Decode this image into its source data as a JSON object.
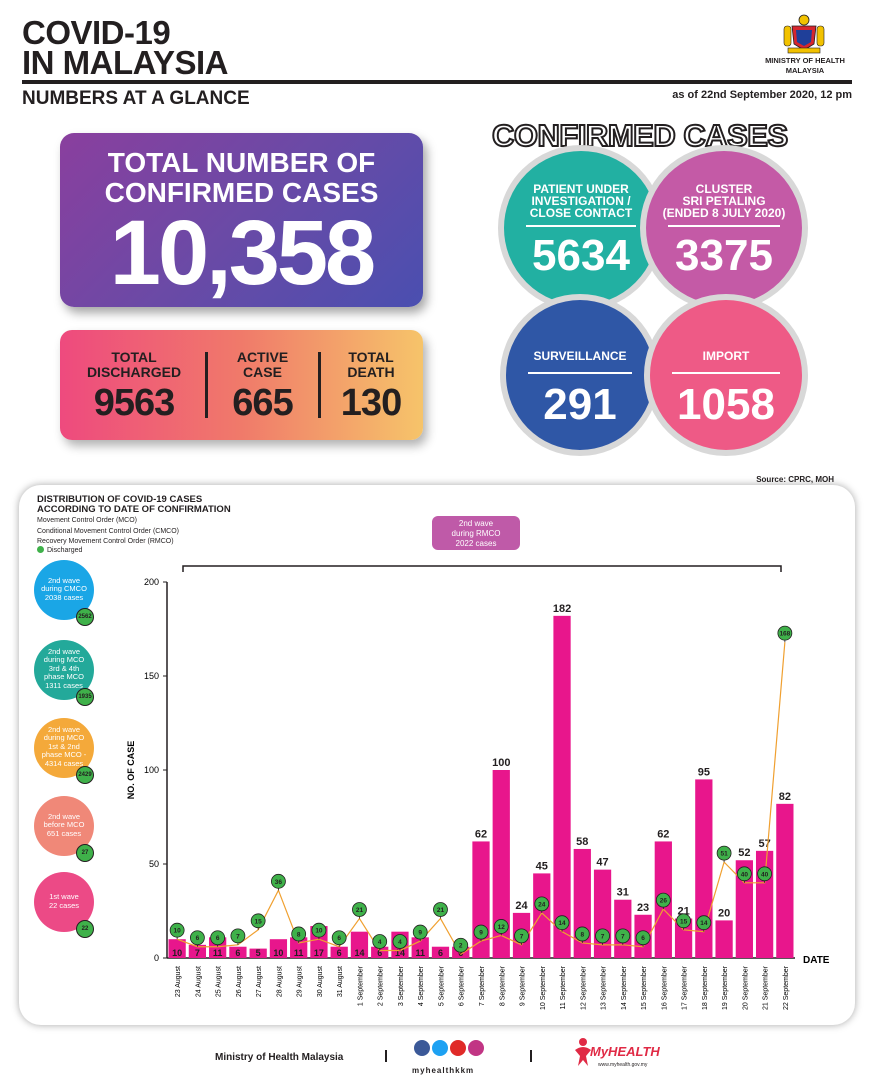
{
  "header": {
    "title_line1": "COVID-19",
    "title_line2": "IN MALAYSIA",
    "subtitle": "NUMBERS AT A GLANCE",
    "as_of": "as of 22nd September 2020, 12 pm",
    "ministry_line1": "MINISTRY OF HEALTH",
    "ministry_line2": "MALAYSIA",
    "crest_icon": "coat-of-arms-icon"
  },
  "total": {
    "label_line1": "TOTAL NUMBER OF",
    "label_line2": "CONFIRMED CASES",
    "value": "10,358"
  },
  "stats": {
    "discharged": {
      "label_line1": "TOTAL",
      "label_line2": "DISCHARGED",
      "value": "9563"
    },
    "active": {
      "label_line1": "ACTIVE",
      "label_line2": "CASE",
      "value": "665"
    },
    "death": {
      "label_line1": "TOTAL",
      "label_line2": "DEATH",
      "value": "130"
    }
  },
  "confirmed": {
    "heading": "CONFIRMED CASES",
    "pui": {
      "label_line1": "PATIENT UNDER",
      "label_line2": "INVESTIGATION /",
      "label_line3": "CLOSE CONTACT",
      "value": "5634",
      "color": "#22b0a2"
    },
    "cluster": {
      "label_line1": "CLUSTER",
      "label_line2": "SRI PETALING",
      "label_line3": "(ENDED 8 JULY 2020)",
      "value": "3375",
      "color": "#c45aa6"
    },
    "surveillance": {
      "label": "SURVEILLANCE",
      "value": "291",
      "color": "#2f57a6"
    },
    "import": {
      "label": "IMPORT",
      "value": "1058",
      "color": "#ee5a86"
    }
  },
  "source": "Source: CPRC, MOH",
  "distribution": {
    "title_line1": "DISTRIBUTION OF COVID-19 CASES",
    "title_line2": "ACCORDING TO DATE OF CONFIRMATION",
    "legend_line1": "Movement Control Order (MCO)",
    "legend_line2": "Conditional Movement Control Order (CMCO)",
    "legend_line3": "Recovery Movement Control Order (RMCO)",
    "legend_discharged": "Discharged",
    "rmco_pill_line1": "2nd wave",
    "rmco_pill_line2": "during RMCO",
    "rmco_pill_line3": "2022 cases",
    "waves": [
      {
        "lines": [
          "2nd wave",
          "during CMCO",
          "2038 cases"
        ],
        "badge": "2562",
        "color": "#1aa6e6"
      },
      {
        "lines": [
          "2nd wave",
          "during MCO",
          "3rd & 4th",
          "phase MCO",
          "1311 cases"
        ],
        "badge": "1935",
        "color": "#23a99a"
      },
      {
        "lines": [
          "2nd wave",
          "during MCO",
          "1st & 2nd",
          "phase MCO -",
          "4314 cases"
        ],
        "badge": "2429",
        "color": "#f4a93a"
      },
      {
        "lines": [
          "2nd wave",
          "before MCO",
          "651 cases"
        ],
        "badge": "27",
        "color": "#f08878"
      },
      {
        "lines": [
          "1st wave",
          "22 cases"
        ],
        "badge": "22",
        "color": "#ec4a86"
      }
    ]
  },
  "chart_data": {
    "type": "bar",
    "ylabel": "NO. OF CASE",
    "xlabel": "DATE",
    "ylim": [
      0,
      200
    ],
    "yticks": [
      0,
      50,
      100,
      150,
      200
    ],
    "categories": [
      "23 August",
      "24 August",
      "25 August",
      "26 August",
      "27 August",
      "28 August",
      "29 August",
      "30 August",
      "31 August",
      "1 September",
      "2 September",
      "3 September",
      "4 September",
      "5 September",
      "6 September",
      "7 September",
      "8 September",
      "9 September",
      "10 September",
      "11 September",
      "12 September",
      "13 September",
      "14 September",
      "15 September",
      "16 September",
      "17 September",
      "18 September",
      "19 September",
      "20 September",
      "21 September",
      "22 September"
    ],
    "series": [
      {
        "name": "",
        "values": [
          10,
          7,
          11,
          6,
          5,
          10,
          11,
          17,
          6,
          14,
          6,
          14,
          11,
          6,
          6,
          62,
          100,
          24,
          45,
          182,
          58,
          47,
          31,
          23,
          62,
          21,
          95,
          20,
          52,
          57,
          82
        ],
        "color": "#e8168c"
      },
      {
        "name": "Discharged",
        "type": "line",
        "values": [
          10,
          6,
          6,
          7,
          15,
          36,
          8,
          10,
          6,
          21,
          4,
          4,
          9,
          21,
          2,
          9,
          12,
          7,
          24,
          14,
          8,
          7,
          7,
          6,
          26,
          15,
          14,
          51,
          40,
          40,
          168
        ],
        "color": "#f0a030"
      }
    ]
  },
  "footer": {
    "ministry": "Ministry of Health Malaysia",
    "handle": "myhealthkkm",
    "brand": "MyHEALTH",
    "brand_url": "www.myhealth.gov.my"
  }
}
